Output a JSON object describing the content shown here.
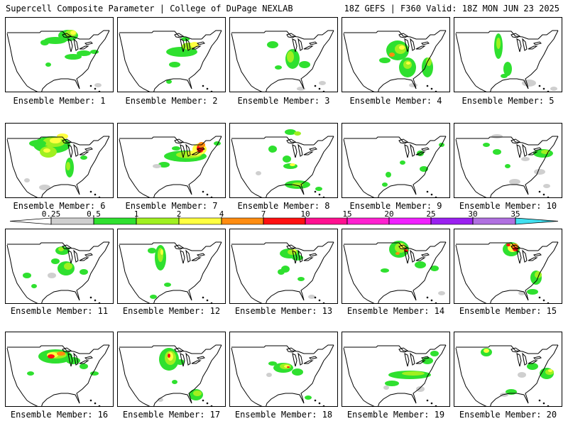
{
  "header": {
    "left_title": "Supercell Composite Parameter | College of DuPage NEXLAB",
    "right_title": "18Z GEFS | F360 Valid: 18Z MON JUN 23 2025"
  },
  "panels": [
    {
      "label": "Ensemble Member: 1"
    },
    {
      "label": "Ensemble Member: 2"
    },
    {
      "label": "Ensemble Member: 3"
    },
    {
      "label": "Ensemble Member: 4"
    },
    {
      "label": "Ensemble Member: 5"
    },
    {
      "label": "Ensemble Member: 6"
    },
    {
      "label": "Ensemble Member: 7"
    },
    {
      "label": "Ensemble Member: 8"
    },
    {
      "label": "Ensemble Member: 9"
    },
    {
      "label": "Ensemble Member: 10"
    },
    {
      "label": "Ensemble Member: 11"
    },
    {
      "label": "Ensemble Member: 12"
    },
    {
      "label": "Ensemble Member: 13"
    },
    {
      "label": "Ensemble Member: 14"
    },
    {
      "label": "Ensemble Member: 15"
    },
    {
      "label": "Ensemble Member: 16"
    },
    {
      "label": "Ensemble Member: 17"
    },
    {
      "label": "Ensemble Member: 18"
    },
    {
      "label": "Ensemble Member: 19"
    },
    {
      "label": "Ensemble Member: 20"
    }
  ],
  "legend": {
    "labels": [
      "0.25",
      "0.5",
      "1",
      "2",
      "4",
      "7",
      "10",
      "15",
      "20",
      "25",
      "30",
      "35"
    ],
    "colors": [
      "#cfcfcf",
      "#2fe02f",
      "#a0f020",
      "#ffff40",
      "#ff8c10",
      "#ff1010",
      "#ff1090",
      "#ff20d0",
      "#f020ff",
      "#9a20f0",
      "#b070e0",
      "#40e0f0"
    ]
  }
}
